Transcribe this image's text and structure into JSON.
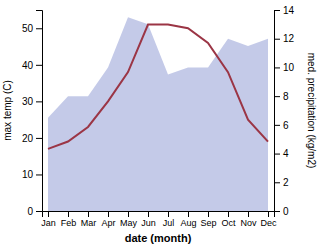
{
  "chart_data": {
    "type": "line",
    "categories": [
      "Jan",
      "Feb",
      "Mar",
      "Apr",
      "May",
      "Jun",
      "Jul",
      "Aug",
      "Sep",
      "Oct",
      "Nov",
      "Dec"
    ],
    "xlabel": "date (month)",
    "ylabel": "max temp (C)",
    "y2label": "med. precipitation (kg/m2)",
    "ylim": [
      0,
      55
    ],
    "yticks": [
      0,
      10,
      20,
      30,
      40,
      50
    ],
    "y2lim": [
      0,
      14
    ],
    "y2ticks": [
      0,
      2,
      4,
      6,
      8,
      10,
      12,
      14
    ],
    "series": [
      {
        "type": "area",
        "axis": "y2",
        "color": "#b0b8e0",
        "values": [
          6.5,
          8.0,
          8.0,
          10.0,
          13.5,
          13.0,
          9.5,
          10.0,
          10.0,
          12.0,
          11.5,
          12.0
        ]
      },
      {
        "type": "line",
        "color": "#9b3545",
        "values": [
          17,
          19,
          23,
          30,
          38,
          51,
          51,
          50,
          46,
          38,
          25,
          19
        ]
      }
    ]
  }
}
